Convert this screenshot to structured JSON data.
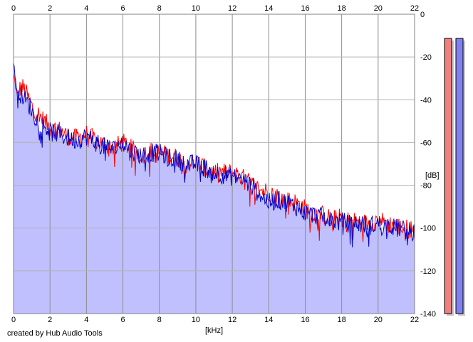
{
  "credit": "created by Hub Audio Tools",
  "chart_data": {
    "type": "area",
    "title": "",
    "xlabel": "[kHz]",
    "ylabel": "[dB]",
    "xlim": [
      0,
      22
    ],
    "ylim": [
      -140,
      0
    ],
    "x_ticks": [
      "0",
      "2",
      "4",
      "6",
      "8",
      "10",
      "12",
      "14",
      "16",
      "18",
      "20",
      "22"
    ],
    "y_ticks": [
      "0",
      "-20",
      "-40",
      "-60",
      "-80",
      "-100",
      "-120",
      "-140"
    ],
    "grid": true,
    "fill_color": "#c0c0ff",
    "series": [
      {
        "color": "#ff0000",
        "x": [
          0,
          0.1,
          0.2,
          0.35,
          0.5,
          0.7,
          0.9,
          1.1,
          1.4,
          1.7,
          2.0,
          2.5,
          3.0,
          3.5,
          4.0,
          4.5,
          5.0,
          5.5,
          6.0,
          6.5,
          7.0,
          7.5,
          8.0,
          8.5,
          9.0,
          9.5,
          10.0,
          10.5,
          11.0,
          11.5,
          12.0,
          12.5,
          13.0,
          13.5,
          14.0,
          14.5,
          15.0,
          15.5,
          16.0,
          16.5,
          17.0,
          17.5,
          18.0,
          18.5,
          19.0,
          19.5,
          20.0,
          20.5,
          21.0,
          21.5,
          22.0
        ],
        "values": [
          -28,
          -33,
          -38,
          -35,
          -34,
          -37,
          -41,
          -45,
          -47,
          -50,
          -53,
          -54,
          -57,
          -58,
          -56,
          -59,
          -61,
          -62,
          -60,
          -63,
          -66,
          -64,
          -65,
          -66,
          -67,
          -70,
          -69,
          -72,
          -74,
          -74,
          -74,
          -76,
          -79,
          -82,
          -83,
          -85,
          -87,
          -88,
          -91,
          -93,
          -94,
          -96,
          -95,
          -97,
          -97,
          -98,
          -96,
          -98,
          -99,
          -100,
          -101
        ]
      },
      {
        "color": "#0000cc",
        "x": [
          0,
          0.1,
          0.2,
          0.35,
          0.5,
          0.7,
          0.9,
          1.1,
          1.4,
          1.7,
          2.0,
          2.5,
          3.0,
          3.5,
          4.0,
          4.5,
          5.0,
          5.5,
          6.0,
          6.5,
          7.0,
          7.5,
          8.0,
          8.5,
          9.0,
          9.5,
          10.0,
          10.5,
          11.0,
          11.5,
          12.0,
          12.5,
          13.0,
          13.5,
          14.0,
          14.5,
          15.0,
          15.5,
          16.0,
          16.5,
          17.0,
          17.5,
          18.0,
          18.5,
          19.0,
          19.5,
          20.0,
          20.5,
          21.0,
          21.5,
          22.0
        ],
        "values": [
          -23,
          -30,
          -36,
          -37,
          -38,
          -41,
          -43,
          -47,
          -50,
          -52,
          -55,
          -56,
          -58,
          -59,
          -57,
          -60,
          -62,
          -63,
          -60,
          -64,
          -66,
          -65,
          -65,
          -67,
          -68,
          -70,
          -70,
          -72,
          -74,
          -75,
          -76,
          -77,
          -80,
          -84,
          -88,
          -87,
          -88,
          -90,
          -93,
          -94,
          -95,
          -97,
          -97,
          -98,
          -98,
          -99,
          -98,
          -99,
          -100,
          -101,
          -102
        ]
      }
    ],
    "level_meters": [
      {
        "color": "#f08080"
      },
      {
        "color": "#8080f0"
      }
    ]
  }
}
